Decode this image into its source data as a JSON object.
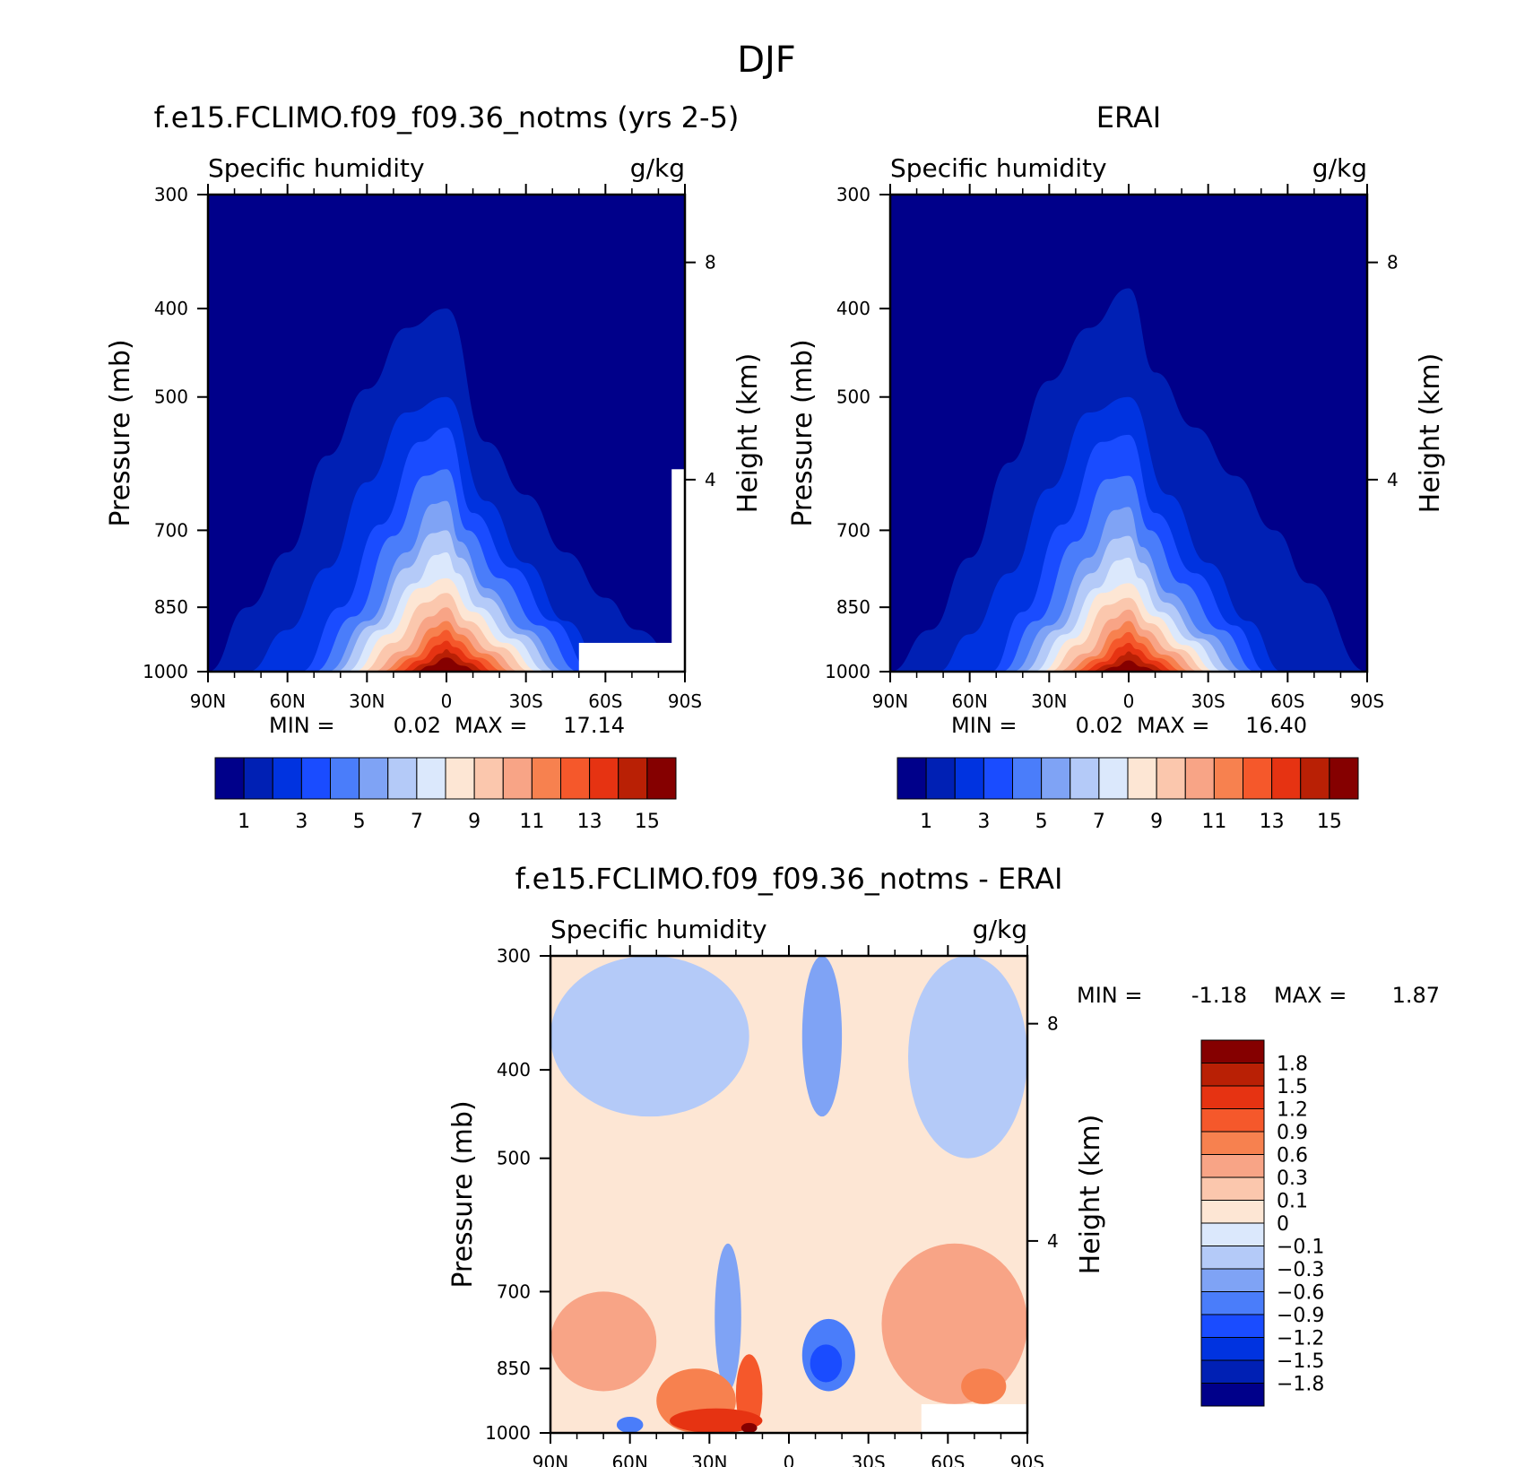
{
  "title": "DJF",
  "y_axis_label": "Pressure (mb)",
  "y2_axis_label": "Height (km)",
  "y_ticks": [
    "300",
    "400",
    "500",
    "700",
    "850",
    "1000"
  ],
  "y2_ticks": [
    "8",
    "4"
  ],
  "x_ticks": [
    "90N",
    "60N",
    "30N",
    "0",
    "30S",
    "60S",
    "90S"
  ],
  "variable_label": "Specific humidity",
  "unit_label": "g/kg",
  "min_label": "MIN =",
  "max_label": "MAX =",
  "panels": [
    {
      "title": "f.e15.FCLIMO.f09_f09.36_notms (yrs 2-5)",
      "min": "0.02",
      "max": "17.14"
    },
    {
      "title": "ERAI",
      "min": "0.02",
      "max": "16.40"
    },
    {
      "title": "f.e15.FCLIMO.f09_f09.36_notms - ERAI",
      "min": "-1.18",
      "max": "1.87"
    }
  ],
  "colorbar_top": {
    "colors": [
      "#00008a",
      "#0020b4",
      "#0033e0",
      "#1a4cff",
      "#4a7dfa",
      "#7fa3f5",
      "#b4caf8",
      "#dbe8fc",
      "#fde6d4",
      "#fbc7ad",
      "#f8a486",
      "#f7814f",
      "#f5582b",
      "#e63312",
      "#b92005",
      "#850000"
    ],
    "labels": [
      "1",
      "3",
      "5",
      "7",
      "9",
      "11",
      "13",
      "15"
    ]
  },
  "colorbar_diff": {
    "colors": [
      "#850000",
      "#b92005",
      "#e63312",
      "#f5582b",
      "#f7814f",
      "#f8a486",
      "#fbc7ad",
      "#fde6d4",
      "#dbe8fc",
      "#b4caf8",
      "#7fa3f5",
      "#4a7dfa",
      "#1a4cff",
      "#0033e0",
      "#0020b4",
      "#00008a"
    ],
    "labels": [
      "1.8",
      "1.5",
      "1.2",
      "0.9",
      "0.6",
      "0.3",
      "0.1",
      "0",
      "-0.1",
      "-0.3",
      "-0.6",
      "-0.9",
      "-1.2",
      "-1.5",
      "-1.8"
    ]
  },
  "chart_data": [
    {
      "type": "heatmap",
      "title": "f.e15.FCLIMO.f09_f09.36_notms (yrs 2-5)",
      "subtitle": "Specific humidity",
      "unit": "g/kg",
      "xlabel": "",
      "ylabel": "Pressure (mb)",
      "y2label": "Height (km)",
      "x_range": [
        "90N",
        "90S"
      ],
      "ylim": [
        1000,
        300
      ],
      "levels": [
        1,
        2,
        3,
        4,
        5,
        6,
        7,
        8,
        9,
        10,
        11,
        12,
        13,
        14,
        15
      ],
      "contour_tops": [
        {
          "level": 1,
          "lat": [
            -90,
            -72,
            -60,
            -45,
            -30,
            -15,
            0,
            15,
            30,
            45,
            60,
            75,
            90
          ],
          "p": [
            1000,
            900,
            830,
            740,
            640,
            560,
            400,
            420,
            490,
            580,
            740,
            850,
            1000
          ]
        },
        {
          "level": 2,
          "lat": [
            -60,
            -45,
            -30,
            -15,
            0,
            15,
            30,
            45,
            60,
            75
          ],
          "p": [
            1000,
            880,
            760,
            650,
            500,
            520,
            620,
            770,
            900,
            1000
          ]
        },
        {
          "level": 3,
          "lat": [
            -55,
            -40,
            -25,
            -10,
            0,
            10,
            25,
            40,
            55
          ],
          "p": [
            1000,
            880,
            770,
            670,
            540,
            560,
            690,
            850,
            1000
          ]
        },
        {
          "level": 4,
          "lat": [
            -50,
            -35,
            -20,
            -8,
            0,
            8,
            20,
            35,
            50
          ],
          "p": [
            1000,
            890,
            790,
            700,
            600,
            610,
            710,
            870,
            1000
          ]
        },
        {
          "level": 5,
          "lat": [
            -45,
            -30,
            -15,
            -5,
            0,
            5,
            15,
            30,
            45
          ],
          "p": [
            1000,
            900,
            810,
            720,
            650,
            655,
            740,
            880,
            1000
          ]
        },
        {
          "level": 6,
          "lat": [
            -42,
            -28,
            -15,
            -5,
            0,
            5,
            15,
            28,
            42
          ],
          "p": [
            1000,
            910,
            830,
            750,
            700,
            705,
            770,
            890,
            1000
          ]
        },
        {
          "level": 7,
          "lat": [
            -38,
            -25,
            -12,
            -4,
            0,
            4,
            12,
            25,
            38
          ],
          "p": [
            1000,
            920,
            850,
            780,
            740,
            745,
            800,
            900,
            1000
          ]
        },
        {
          "level": 8,
          "lat": [
            -35,
            -22,
            -10,
            0,
            10,
            22,
            35
          ],
          "p": [
            1000,
            930,
            860,
            790,
            810,
            910,
            1000
          ]
        },
        {
          "level": 9,
          "lat": [
            -32,
            -20,
            -8,
            0,
            8,
            20,
            32
          ],
          "p": [
            1000,
            940,
            880,
            820,
            840,
            930,
            1000
          ]
        },
        {
          "level": 10,
          "lat": [
            -28,
            -17,
            -6,
            0,
            6,
            17,
            28
          ],
          "p": [
            1000,
            950,
            895,
            850,
            870,
            950,
            1000
          ]
        },
        {
          "level": 11,
          "lat": [
            -25,
            -14,
            -5,
            0,
            5,
            14,
            25
          ],
          "p": [
            1000,
            955,
            910,
            880,
            895,
            960,
            1000
          ]
        },
        {
          "level": 12,
          "lat": [
            -22,
            -12,
            -4,
            0,
            4,
            12,
            22
          ],
          "p": [
            1000,
            965,
            925,
            900,
            915,
            965,
            1000
          ]
        },
        {
          "level": 13,
          "lat": [
            -18,
            -10,
            -3,
            0,
            3,
            10,
            18
          ],
          "p": [
            1000,
            970,
            940,
            925,
            935,
            972,
            1000
          ]
        },
        {
          "level": 14,
          "lat": [
            -15,
            -8,
            -2,
            0,
            2,
            8,
            15
          ],
          "p": [
            1000,
            978,
            955,
            945,
            955,
            980,
            1000
          ]
        },
        {
          "level": 15,
          "lat": [
            -12,
            -6,
            0,
            6,
            12
          ],
          "p": [
            1000,
            985,
            965,
            985,
            1000
          ]
        }
      ],
      "min": 0.02,
      "max": 17.14
    },
    {
      "type": "heatmap",
      "title": "ERAI",
      "subtitle": "Specific humidity",
      "unit": "g/kg",
      "xlabel": "",
      "ylabel": "Pressure (mb)",
      "y2label": "Height (km)",
      "x_range": [
        "90N",
        "90S"
      ],
      "ylim": [
        1000,
        300
      ],
      "levels": [
        1,
        2,
        3,
        4,
        5,
        6,
        7,
        8,
        9,
        10,
        11,
        12,
        13,
        14,
        15
      ],
      "contour_tops": [
        {
          "level": 1,
          "lat": [
            -90,
            -68,
            -55,
            -40,
            -25,
            -10,
            0,
            15,
            30,
            45,
            60,
            75,
            90
          ],
          "p": [
            1000,
            800,
            700,
            610,
            540,
            470,
            380,
            420,
            480,
            590,
            750,
            900,
            1000
          ]
        },
        {
          "level": 2,
          "lat": [
            -58,
            -45,
            -30,
            -15,
            0,
            15,
            30,
            45,
            60,
            72
          ],
          "p": [
            1000,
            880,
            760,
            640,
            500,
            520,
            630,
            780,
            910,
            1000
          ]
        },
        {
          "level": 3,
          "lat": [
            -52,
            -40,
            -25,
            -10,
            0,
            10,
            25,
            40,
            52
          ],
          "p": [
            1000,
            890,
            780,
            670,
            550,
            560,
            690,
            860,
            1000
          ]
        },
        {
          "level": 4,
          "lat": [
            -48,
            -35,
            -20,
            -8,
            0,
            8,
            20,
            35,
            48
          ],
          "p": [
            1000,
            900,
            800,
            700,
            610,
            615,
            720,
            880,
            1000
          ]
        },
        {
          "level": 5,
          "lat": [
            -44,
            -30,
            -15,
            -5,
            0,
            5,
            15,
            30,
            44
          ],
          "p": [
            1000,
            910,
            820,
            730,
            660,
            665,
            750,
            890,
            1000
          ]
        },
        {
          "level": 6,
          "lat": [
            -40,
            -27,
            -14,
            -5,
            0,
            5,
            14,
            27,
            40
          ],
          "p": [
            1000,
            920,
            840,
            760,
            710,
            715,
            780,
            900,
            1000
          ]
        },
        {
          "level": 7,
          "lat": [
            -36,
            -24,
            -12,
            -4,
            0,
            4,
            12,
            24,
            36
          ],
          "p": [
            1000,
            925,
            860,
            790,
            750,
            755,
            810,
            910,
            1000
          ]
        },
        {
          "level": 8,
          "lat": [
            -33,
            -21,
            -10,
            0,
            10,
            21,
            33
          ],
          "p": [
            1000,
            935,
            870,
            800,
            820,
            920,
            1000
          ]
        },
        {
          "level": 9,
          "lat": [
            -30,
            -19,
            -8,
            0,
            8,
            19,
            30
          ],
          "p": [
            1000,
            945,
            885,
            830,
            845,
            935,
            1000
          ]
        },
        {
          "level": 10,
          "lat": [
            -27,
            -16,
            -6,
            0,
            6,
            16,
            27
          ],
          "p": [
            1000,
            950,
            900,
            855,
            875,
            955,
            1000
          ]
        },
        {
          "level": 11,
          "lat": [
            -24,
            -13,
            -5,
            0,
            5,
            13,
            24
          ],
          "p": [
            1000,
            958,
            915,
            880,
            900,
            962,
            1000
          ]
        },
        {
          "level": 12,
          "lat": [
            -21,
            -11,
            -4,
            0,
            4,
            11,
            21
          ],
          "p": [
            1000,
            966,
            930,
            905,
            920,
            968,
            1000
          ]
        },
        {
          "level": 13,
          "lat": [
            -18,
            -9,
            -3,
            0,
            3,
            9,
            18
          ],
          "p": [
            1000,
            972,
            945,
            930,
            940,
            975,
            1000
          ]
        },
        {
          "level": 14,
          "lat": [
            -15,
            -7,
            -2,
            0,
            2,
            7,
            15
          ],
          "p": [
            1000,
            980,
            958,
            950,
            960,
            982,
            1000
          ]
        },
        {
          "level": 15,
          "lat": [
            -12,
            -5,
            0,
            5,
            12
          ],
          "p": [
            1000,
            988,
            972,
            988,
            1000
          ]
        }
      ],
      "min": 0.02,
      "max": 16.4
    },
    {
      "type": "heatmap",
      "title": "f.e15.FCLIMO.f09_f09.36_notms - ERAI",
      "subtitle": "Specific humidity",
      "unit": "g/kg",
      "xlabel": "",
      "ylabel": "Pressure (mb)",
      "y2label": "Height (km)",
      "x_range": [
        "90N",
        "90S"
      ],
      "ylim": [
        1000,
        300
      ],
      "levels": [
        -1.8,
        -1.5,
        -1.2,
        -0.9,
        -0.6,
        -0.3,
        -0.1,
        0,
        0.1,
        0.3,
        0.6,
        0.9,
        1.2,
        1.5,
        1.8
      ],
      "features": [
        {
          "level": -0.1,
          "lat_range": [
            -90,
            -15
          ],
          "p_range": [
            300,
            450
          ]
        },
        {
          "level": -0.1,
          "lat_range": [
            45,
            90
          ],
          "p_range": [
            300,
            500
          ]
        },
        {
          "level": -0.3,
          "lat_range": [
            5,
            20
          ],
          "p_range": [
            300,
            450
          ]
        },
        {
          "level": -0.3,
          "lat_range": [
            -28,
            -18
          ],
          "p_range": [
            620,
            900
          ]
        },
        {
          "level": -0.6,
          "lat_range": [
            5,
            25
          ],
          "p_range": [
            750,
            900
          ]
        },
        {
          "level": -0.9,
          "lat_range": [
            8,
            20
          ],
          "p_range": [
            800,
            880
          ]
        },
        {
          "level": 0.3,
          "lat_range": [
            -90,
            -50
          ],
          "p_range": [
            700,
            900
          ]
        },
        {
          "level": 0.3,
          "lat_range": [
            35,
            90
          ],
          "p_range": [
            620,
            930
          ]
        },
        {
          "level": 0.6,
          "lat_range": [
            -50,
            -20
          ],
          "p_range": [
            850,
            1000
          ]
        },
        {
          "level": 0.9,
          "lat_range": [
            -20,
            -10
          ],
          "p_range": [
            820,
            1000
          ]
        },
        {
          "level": 1.2,
          "lat_range": [
            -45,
            -10
          ],
          "p_range": [
            940,
            1000
          ]
        },
        {
          "level": 1.8,
          "lat_range": [
            -18,
            -12
          ],
          "p_range": [
            975,
            1000
          ]
        },
        {
          "level": -0.6,
          "lat_range": [
            -65,
            -55
          ],
          "p_range": [
            960,
            1000
          ]
        },
        {
          "level": 0.6,
          "lat_range": [
            65,
            82
          ],
          "p_range": [
            850,
            930
          ]
        }
      ],
      "min": -1.18,
      "max": 1.87
    }
  ]
}
